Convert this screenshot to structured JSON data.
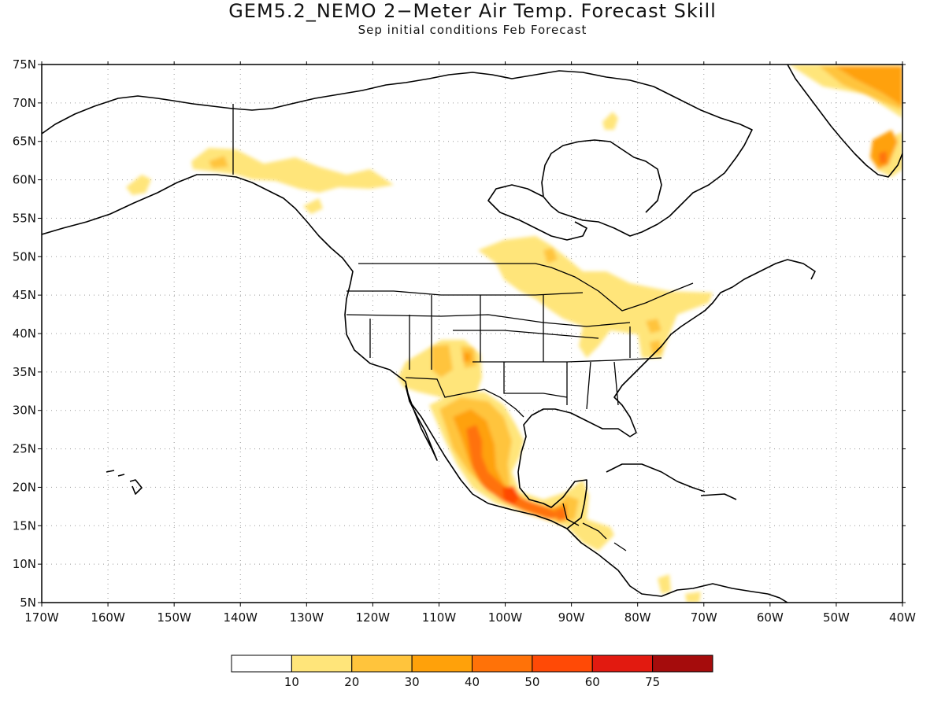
{
  "title": "GEM5.2_NEMO 2−Meter Air Temp. Forecast Skill",
  "subtitle": "Sep initial conditions  Feb Forecast",
  "axes": {
    "lon_labels": [
      "170W",
      "160W",
      "150W",
      "140W",
      "130W",
      "120W",
      "110W",
      "100W",
      "90W",
      "80W",
      "70W",
      "60W",
      "50W",
      "40W"
    ],
    "lat_labels": [
      "75N",
      "70N",
      "65N",
      "60N",
      "55N",
      "50N",
      "45N",
      "40N",
      "35N",
      "30N",
      "25N",
      "20N",
      "15N",
      "10N",
      "5N"
    ]
  },
  "colorbar": {
    "colors": [
      "#ffffff",
      "#ffe57a",
      "#ffc43c",
      "#ffa10a",
      "#ff7208",
      "#ff4a06",
      "#e21a10",
      "#a50c0c"
    ],
    "labels": [
      "10",
      "20",
      "30",
      "40",
      "50",
      "60",
      "75"
    ]
  },
  "colors": {
    "level1": "#ffe57a",
    "level2": "#ffc43c",
    "level3": "#ffa10a",
    "level4": "#ff7208",
    "level5": "#ff4a06"
  }
}
